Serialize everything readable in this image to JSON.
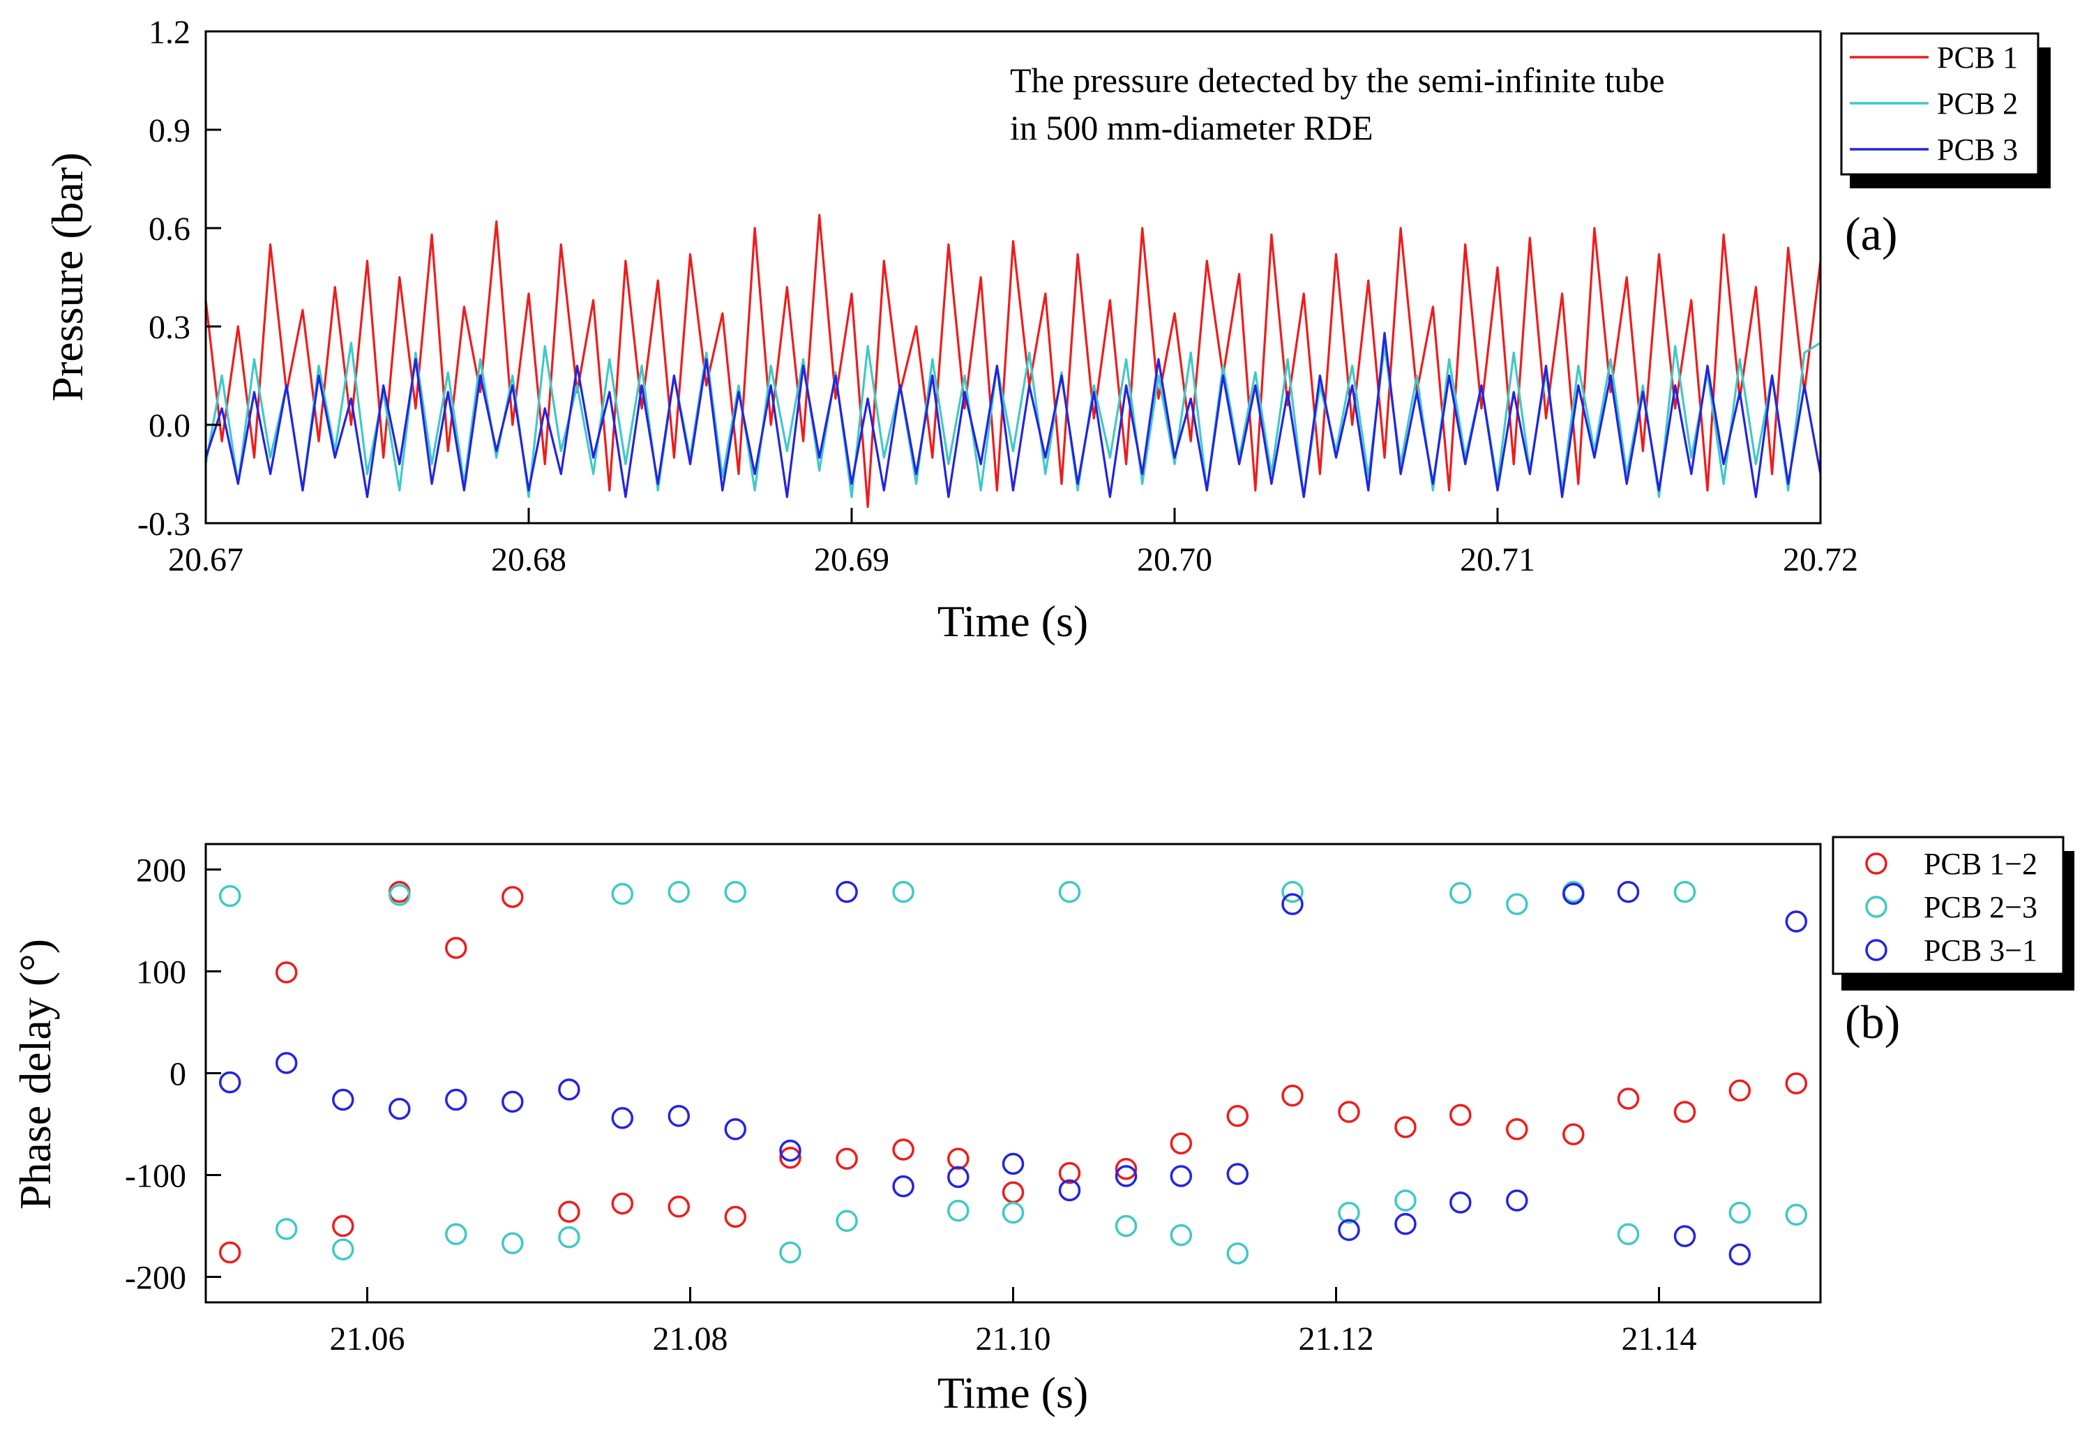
{
  "panel_a": {
    "label": "(a)",
    "annotation_lines": [
      "The pressure detected by the semi-infinite tube",
      "in 500 mm-diameter RDE"
    ]
  },
  "panel_b": {
    "label": "(b)"
  },
  "chart_data": [
    {
      "type": "line",
      "title": "",
      "xlabel": "Time (s)",
      "ylabel": "Pressure (bar)",
      "xlim": [
        20.67,
        20.72
      ],
      "ylim": [
        -0.3,
        1.2
      ],
      "x_ticks": [
        "20.67",
        "20.68",
        "20.69",
        "20.70",
        "20.71",
        "20.72"
      ],
      "y_ticks": [
        "-0.3",
        "0.0",
        "0.3",
        "0.6",
        "0.9",
        "1.2"
      ],
      "legend_position": "top-right, outside plot",
      "grid": false,
      "x_start": 20.67,
      "x_step": 0.0005,
      "series": [
        {
          "name": "PCB 1",
          "color": "#ee1c1c",
          "values": [
            0.38,
            -0.05,
            0.3,
            -0.1,
            0.55,
            0.1,
            0.35,
            -0.05,
            0.42,
            0.0,
            0.5,
            -0.1,
            0.45,
            0.05,
            0.58,
            -0.08,
            0.36,
            0.1,
            0.62,
            0.0,
            0.4,
            -0.12,
            0.55,
            0.1,
            0.38,
            -0.2,
            0.5,
            0.05,
            0.44,
            -0.1,
            0.52,
            0.12,
            0.34,
            -0.15,
            0.6,
            0.0,
            0.42,
            -0.05,
            0.64,
            0.08,
            0.4,
            -0.25,
            0.5,
            0.1,
            0.3,
            -0.1,
            0.55,
            0.05,
            0.45,
            -0.2,
            0.56,
            0.12,
            0.4,
            -0.18,
            0.52,
            0.02,
            0.38,
            -0.12,
            0.6,
            0.08,
            0.34,
            -0.05,
            0.5,
            0.15,
            0.46,
            -0.2,
            0.58,
            0.06,
            0.4,
            -0.15,
            0.52,
            0.0,
            0.44,
            -0.1,
            0.6,
            0.1,
            0.36,
            -0.2,
            0.55,
            0.05,
            0.48,
            -0.12,
            0.57,
            0.02,
            0.4,
            -0.18,
            0.6,
            0.1,
            0.45,
            -0.08,
            0.52,
            0.05,
            0.38,
            -0.2,
            0.58,
            0.08,
            0.42,
            -0.15,
            0.54,
            0.1,
            0.5
          ]
        },
        {
          "name": "PCB 2",
          "color": "#40c8c8",
          "values": [
            -0.12,
            0.15,
            -0.18,
            0.2,
            -0.1,
            0.12,
            -0.2,
            0.18,
            -0.08,
            0.25,
            -0.15,
            0.1,
            -0.2,
            0.22,
            -0.12,
            0.16,
            -0.18,
            0.2,
            -0.1,
            0.15,
            -0.22,
            0.24,
            -0.08,
            0.12,
            -0.15,
            0.2,
            -0.12,
            0.18,
            -0.2,
            0.15,
            -0.1,
            0.22,
            -0.16,
            0.12,
            -0.2,
            0.18,
            -0.08,
            0.2,
            -0.14,
            0.16,
            -0.22,
            0.24,
            -0.1,
            0.12,
            -0.18,
            0.2,
            -0.12,
            0.15,
            -0.2,
            0.18,
            -0.08,
            0.22,
            -0.15,
            0.16,
            -0.2,
            0.12,
            -0.1,
            0.2,
            -0.18,
            0.15,
            -0.12,
            0.22,
            -0.2,
            0.18,
            -0.1,
            0.16,
            -0.15,
            0.2,
            -0.22,
            0.12,
            -0.08,
            0.18,
            -0.16,
            0.24,
            -0.12,
            0.15,
            -0.2,
            0.2,
            -0.1,
            0.12,
            -0.18,
            0.22,
            -0.14,
            0.16,
            -0.2,
            0.18,
            -0.08,
            0.2,
            -0.15,
            0.12,
            -0.22,
            0.24,
            -0.1,
            0.16,
            -0.18,
            0.2,
            -0.12,
            0.15,
            -0.2,
            0.22,
            0.25
          ]
        },
        {
          "name": "PCB 3",
          "color": "#2424e0",
          "values": [
            -0.1,
            0.05,
            -0.18,
            0.1,
            -0.15,
            0.12,
            -0.2,
            0.15,
            -0.1,
            0.08,
            -0.22,
            0.12,
            -0.12,
            0.2,
            -0.18,
            0.1,
            -0.2,
            0.15,
            -0.08,
            0.12,
            -0.2,
            0.05,
            -0.15,
            0.18,
            -0.1,
            0.1,
            -0.22,
            0.12,
            -0.18,
            0.15,
            -0.12,
            0.2,
            -0.2,
            0.1,
            -0.15,
            0.12,
            -0.22,
            0.18,
            -0.1,
            0.15,
            -0.18,
            0.08,
            -0.2,
            0.12,
            -0.15,
            0.15,
            -0.22,
            0.1,
            -0.12,
            0.18,
            -0.2,
            0.12,
            -0.1,
            0.15,
            -0.18,
            0.1,
            -0.22,
            0.12,
            -0.15,
            0.2,
            -0.1,
            0.08,
            -0.2,
            0.15,
            -0.12,
            0.12,
            -0.18,
            0.1,
            -0.22,
            0.15,
            -0.1,
            0.12,
            -0.2,
            0.28,
            -0.15,
            0.1,
            -0.18,
            0.15,
            -0.12,
            0.12,
            -0.2,
            0.1,
            -0.15,
            0.18,
            -0.22,
            0.12,
            -0.1,
            0.15,
            -0.18,
            0.1,
            -0.2,
            0.12,
            -0.15,
            0.18,
            -0.12,
            0.1,
            -0.22,
            0.15,
            -0.18,
            0.12,
            -0.15
          ]
        }
      ]
    },
    {
      "type": "scatter",
      "title": "",
      "xlabel": "Time (s)",
      "ylabel": "Phase delay (°)",
      "xlim": [
        21.05,
        21.15
      ],
      "ylim": [
        -225,
        225
      ],
      "x_ticks": [
        "21.06",
        "21.08",
        "21.10",
        "21.12",
        "21.14"
      ],
      "y_ticks": [
        "-200",
        "-100",
        "0",
        "100",
        "200"
      ],
      "legend_position": "top-right, outside plot",
      "grid": false,
      "marker": "open-circle",
      "x": [
        21.0515,
        21.055,
        21.0585,
        21.062,
        21.0655,
        21.069,
        21.0725,
        21.0758,
        21.0793,
        21.0828,
        21.0862,
        21.0897,
        21.0932,
        21.0966,
        21.1,
        21.1035,
        21.107,
        21.1104,
        21.1139,
        21.1173,
        21.1208,
        21.1243,
        21.1277,
        21.1312,
        21.1347,
        21.1381,
        21.1416,
        21.145,
        21.1485
      ],
      "series": [
        {
          "name": "PCB 1−2",
          "color": "#ee1c1c",
          "values": [
            -176,
            99,
            -150,
            178,
            123,
            173,
            -136,
            -128,
            -131,
            -141,
            -83,
            -84,
            -75,
            -84,
            -117,
            -98,
            -94,
            -69,
            -42,
            -22,
            -38,
            -53,
            -41,
            -55,
            -60,
            -25,
            -38,
            -17,
            -10
          ]
        },
        {
          "name": "PCB 2−3",
          "color": "#40c8c8",
          "values": [
            174,
            -153,
            -173,
            175,
            -158,
            -167,
            -161,
            176,
            178,
            178,
            -176,
            -145,
            178,
            -135,
            -137,
            178,
            -150,
            -159,
            -177,
            178,
            -137,
            -125,
            177,
            166,
            178,
            -158,
            178,
            -137,
            -139
          ]
        },
        {
          "name": "PCB 3−1",
          "color": "#2424e0",
          "values": [
            -9,
            10,
            -26,
            -35,
            -26,
            -28,
            -16,
            -44,
            -42,
            -55,
            -76,
            178,
            -111,
            -102,
            -89,
            -115,
            -101,
            -101,
            -99,
            166,
            -154,
            -148,
            -127,
            -125,
            176,
            178,
            -160,
            -178,
            149
          ]
        }
      ]
    }
  ]
}
